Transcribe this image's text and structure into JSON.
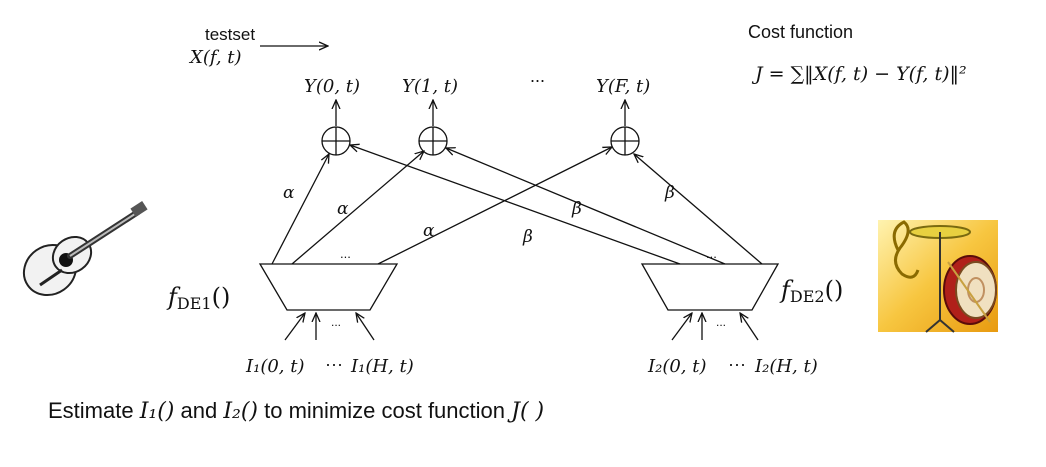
{
  "header": {
    "testset_label": "testset",
    "testset_signal": "X(f, t)"
  },
  "cost": {
    "title": "Cost function",
    "equation": "J = ∑‖X(f, t) − Y(f, t)‖²"
  },
  "outputs": {
    "y0": "Y(0, t)",
    "y1": "Y(1, t)",
    "ellipsis": "...",
    "yF": "Y(F, t)"
  },
  "weights": {
    "alpha": "α",
    "beta": "β"
  },
  "decoders": {
    "de1_label": "f",
    "de1_sub": "DE1",
    "de1_paren": "()",
    "de2_label": "f",
    "de2_sub": "DE2",
    "de2_paren": "()",
    "dots": "..."
  },
  "inputs": {
    "i1_start": "I₁(0, t)",
    "i1_dots": "···",
    "i1_end": "I₁(H, t)",
    "i2_start": "I₂(0, t)",
    "i2_dots": "···",
    "i2_end": "I₂(H, t)"
  },
  "caption": {
    "part1": "Estimate ",
    "i1": "I₁()",
    "and": " and ",
    "i2": "I₂()",
    "part2": " to minimize cost function ",
    "j": "J( )"
  },
  "icons": [
    "guitar-icon",
    "drum-cymbal-icon"
  ]
}
